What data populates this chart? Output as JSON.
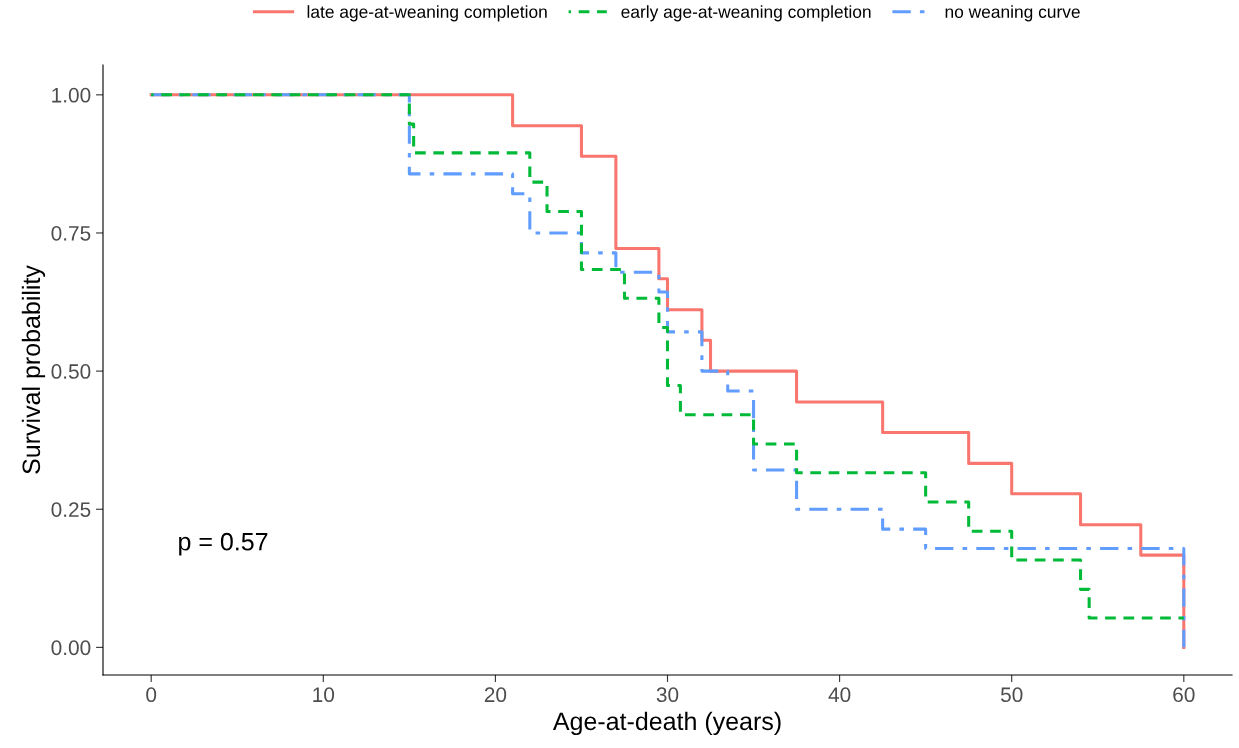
{
  "chart_data": {
    "type": "step",
    "xlabel": "Age-at-death (years)",
    "ylabel": "Survival probability",
    "annotations": [
      "p = 0.57"
    ],
    "series": [
      {
        "name": "late age-at-weaning completion",
        "color": "#f8766d",
        "line_style": "solid",
        "x": [
          0,
          21,
          25,
          27,
          29.5,
          30,
          32,
          32.5,
          37.5,
          42.5,
          47.5,
          50,
          54,
          57.5,
          60
        ],
        "values": [
          1,
          0.944,
          0.889,
          0.722,
          0.667,
          0.611,
          0.556,
          0.5,
          0.444,
          0.389,
          0.333,
          0.278,
          0.222,
          0.167,
          0
        ]
      },
      {
        "name": "early age-at-weaning completion",
        "color": "#00ba38",
        "line_style": "dashed",
        "x": [
          0,
          15,
          15.25,
          22,
          23,
          25,
          27.5,
          29.5,
          30,
          30.75,
          35,
          37.5,
          45,
          47.5,
          50,
          54,
          54.5,
          60
        ],
        "values": [
          1,
          0.947,
          0.895,
          0.842,
          0.789,
          0.684,
          0.632,
          0.579,
          0.474,
          0.421,
          0.368,
          0.316,
          0.263,
          0.21,
          0.158,
          0.105,
          0.053,
          0.053
        ]
      },
      {
        "name": "no weaning curve",
        "color": "#619cff",
        "line_style": "dashdot",
        "x": [
          0,
          15,
          21,
          22,
          25,
          27,
          29.5,
          30,
          32,
          33.5,
          35,
          37.5,
          42.5,
          45,
          60
        ],
        "values": [
          1,
          0.857,
          0.821,
          0.75,
          0.714,
          0.679,
          0.643,
          0.571,
          0.5,
          0.464,
          0.321,
          0.25,
          0.214,
          0.179,
          0
        ]
      }
    ],
    "xlim": [
      -2.8,
      62.8
    ],
    "xticks": [
      0,
      10,
      20,
      30,
      40,
      50,
      60
    ],
    "ylim": [
      -0.05,
      1.054
    ],
    "yticks": [
      {
        "value": 0,
        "label": "0.00"
      },
      {
        "value": 0.25,
        "label": "0.25"
      },
      {
        "value": 0.5,
        "label": "0.50"
      },
      {
        "value": 0.75,
        "label": "0.75"
      },
      {
        "value": 1,
        "label": "1.00"
      }
    ],
    "grid": false,
    "legend": "top"
  }
}
